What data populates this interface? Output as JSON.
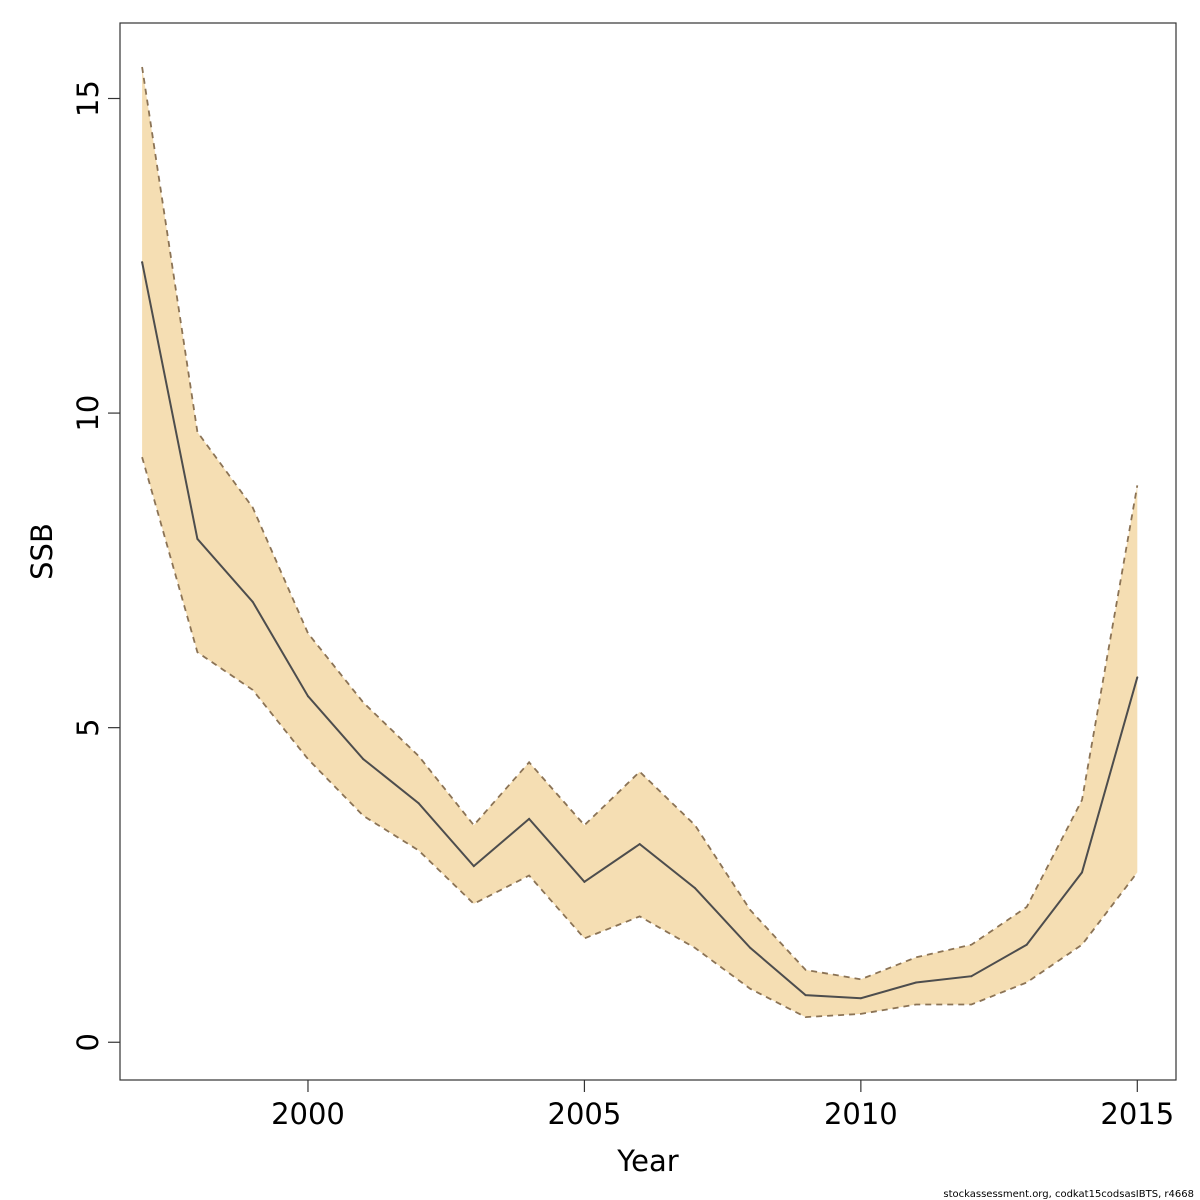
{
  "chart_data": {
    "type": "area",
    "title": "",
    "xlabel": "Year",
    "ylabel": "SSB",
    "xlim": [
      1996.6,
      2015.7
    ],
    "ylim": [
      -0.6,
      16.2
    ],
    "xticks": [
      2000,
      2005,
      2010,
      2015
    ],
    "yticks": [
      0,
      5,
      10,
      15
    ],
    "grid": false,
    "legend": "none",
    "x": [
      1997,
      1998,
      1999,
      2000,
      2001,
      2002,
      2003,
      2004,
      2005,
      2006,
      2007,
      2008,
      2009,
      2010,
      2011,
      2012,
      2013,
      2014,
      2015
    ],
    "series": [
      {
        "role": "estimate",
        "values": [
          12.4,
          8.0,
          7.0,
          5.5,
          4.5,
          3.8,
          2.8,
          3.55,
          2.55,
          3.15,
          2.45,
          1.5,
          0.75,
          0.7,
          0.95,
          1.05,
          1.55,
          2.7,
          5.8
        ]
      },
      {
        "role": "upper",
        "values": [
          15.5,
          9.7,
          8.5,
          6.5,
          5.4,
          4.55,
          3.45,
          4.45,
          3.45,
          4.3,
          3.45,
          2.1,
          1.15,
          1.0,
          1.35,
          1.55,
          2.15,
          3.85,
          8.85
        ]
      },
      {
        "role": "lower",
        "values": [
          9.3,
          6.2,
          5.6,
          4.5,
          3.6,
          3.05,
          2.2,
          2.65,
          1.65,
          2.0,
          1.5,
          0.85,
          0.4,
          0.45,
          0.6,
          0.6,
          0.95,
          1.55,
          2.7
        ]
      }
    ],
    "colors": {
      "band": "#f5deb3",
      "band_edge": "#8b7355",
      "line": "#4d4d4d",
      "frame": "#333333"
    }
  },
  "footer": "stockassessment.org, codkat15codsasIBTS, r4668"
}
